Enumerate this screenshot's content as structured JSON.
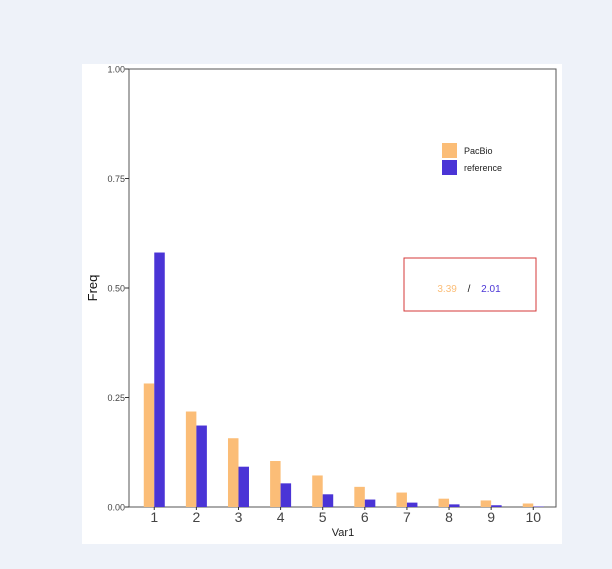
{
  "chart_data": {
    "type": "bar",
    "title": "",
    "xlabel": "Var1",
    "ylabel": "Freq",
    "ylim": [
      0,
      1
    ],
    "yticks": [
      "0.00",
      "0.25",
      "0.50",
      "0.75",
      "1.00"
    ],
    "yticks_values": [
      0,
      0.25,
      0.5,
      0.75,
      1.0
    ],
    "categories": [
      "1",
      "2",
      "3",
      "4",
      "5",
      "6",
      "7",
      "8",
      "9",
      "10"
    ],
    "series": [
      {
        "name": "PacBio",
        "color": "#fbbd77",
        "values": [
          0.282,
          0.218,
          0.157,
          0.105,
          0.072,
          0.046,
          0.033,
          0.019,
          0.015,
          0.008
        ]
      },
      {
        "name": "reference",
        "color": "#4a34d6",
        "values": [
          0.581,
          0.186,
          0.092,
          0.054,
          0.029,
          0.017,
          0.01,
          0.006,
          0.004,
          0.001
        ]
      }
    ],
    "legend_position": "top-right",
    "grid": false,
    "annotation": {
      "left_value": "3.39",
      "separator": "/",
      "right_value": "2.01",
      "left_color": "#fbbd77",
      "right_color": "#4a34d6",
      "border_color": "#d43a3a"
    }
  }
}
